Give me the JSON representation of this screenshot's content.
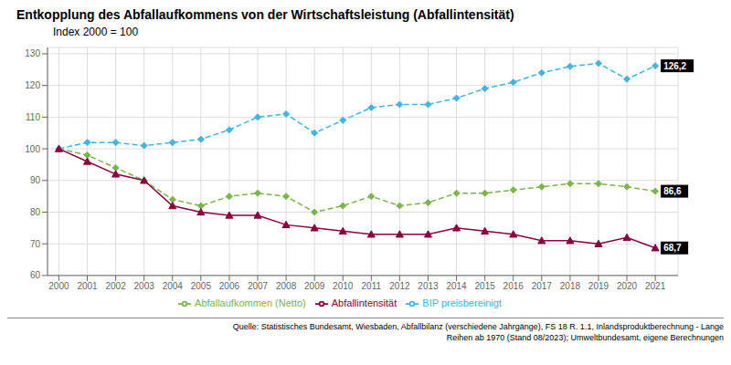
{
  "chart_data": {
    "type": "line",
    "title": "Entkopplung des Abfallaufkommens von der Wirtschaftsleistung (Abfallintensität)",
    "subtitle": "Index 2000 = 100",
    "x": [
      2000,
      2001,
      2002,
      2003,
      2004,
      2005,
      2006,
      2007,
      2008,
      2009,
      2010,
      2011,
      2012,
      2013,
      2014,
      2015,
      2016,
      2017,
      2018,
      2019,
      2020,
      2021
    ],
    "series": [
      {
        "name": "Abfallaufkommen (Netto)",
        "color": "#7ab648",
        "marker": "diamond",
        "line_style": "dashed",
        "values": [
          100,
          98,
          94,
          90,
          84,
          82,
          85,
          86,
          85,
          80,
          82,
          85,
          82,
          83,
          86,
          86,
          87,
          88,
          89,
          89,
          88,
          86.6
        ]
      },
      {
        "name": "BIP preisbereinigt",
        "color": "#42b4e6",
        "marker": "diamond",
        "line_style": "dashed",
        "values": [
          100,
          102,
          102,
          101,
          102,
          103,
          106,
          110,
          111,
          105,
          109,
          113,
          114,
          114,
          116,
          119,
          121,
          124,
          126,
          127,
          122,
          126.2
        ]
      },
      {
        "name": "Abfallintensität",
        "color": "#8b0040",
        "marker": "triangle",
        "line_style": "solid",
        "values": [
          100,
          96,
          92,
          90,
          82,
          80,
          79,
          79,
          76,
          75,
          74,
          73,
          73,
          73,
          75,
          74,
          73,
          71,
          71,
          70,
          72,
          68.7
        ]
      }
    ],
    "xlim": [
      1999.6,
      2021.8
    ],
    "xticks": [
      2000,
      2001,
      2002,
      2003,
      2004,
      2005,
      2006,
      2007,
      2008,
      2009,
      2010,
      2011,
      2012,
      2013,
      2014,
      2015,
      2016,
      2017,
      2018,
      2019,
      2020,
      2021
    ],
    "ylim": [
      60,
      132
    ],
    "yticks": [
      60,
      70,
      80,
      90,
      100,
      110,
      120,
      130
    ],
    "grid": true,
    "legend": "bottom",
    "annotations": [
      {
        "text": "126,2",
        "x": 2021,
        "y": 126.2
      },
      {
        "text": "86,6",
        "x": 2021,
        "y": 86.6
      },
      {
        "text": "68,7",
        "x": 2021,
        "y": 68.7
      }
    ],
    "source": [
      "Quelle: Statistisches Bundesamt, Wiesbaden, Abfallbilanz (verschiedene Jahrgänge), FS 18 R. 1.1, Inlandsproduktberechnung - Lange",
      "Reihen ab 1970 (Stand 08/2023); Umweltbundesamt, eigene Berechnungen"
    ]
  }
}
